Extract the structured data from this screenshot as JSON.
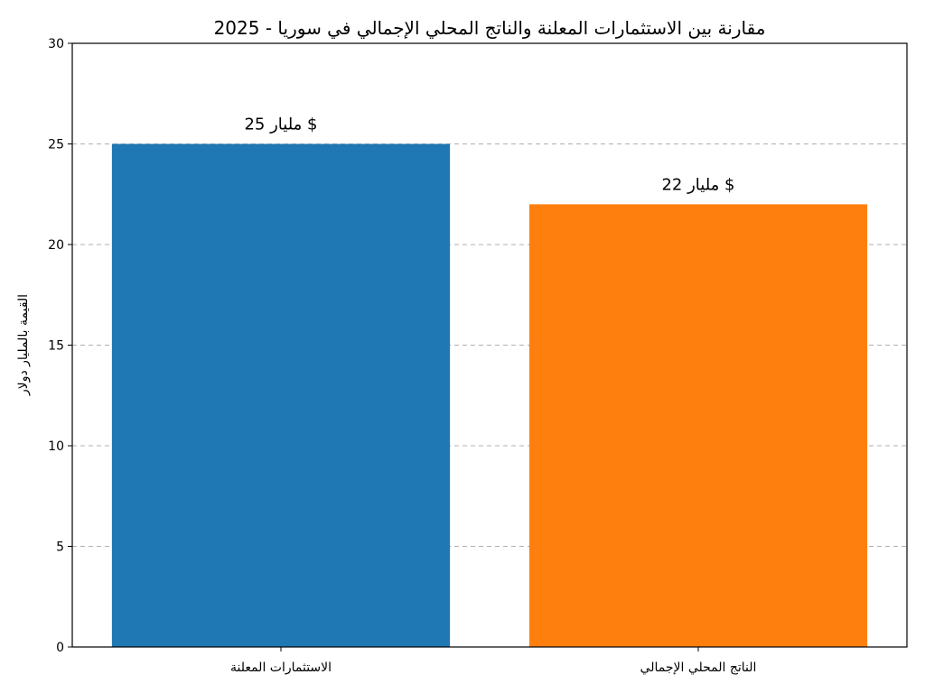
{
  "chart_data": {
    "type": "bar",
    "title": "مقارنة بين الاستثمارات المعلنة والناتج المحلي الإجمالي في سوريا - 2025",
    "xlabel": "",
    "ylabel": "القيمة بالمليار دولار",
    "categories": [
      "الاستثمارات المعلنة",
      "الناتج المحلي الإجمالي"
    ],
    "values": [
      25,
      22
    ],
    "data_labels": [
      "25 مليار $",
      "22 مليار $"
    ],
    "colors": [
      "#1f77b4",
      "#ff7f0e"
    ],
    "ylim": [
      0,
      30
    ],
    "yticks": [
      0,
      5,
      10,
      15,
      20,
      25,
      30
    ],
    "ytick_labels": [
      "0",
      "5",
      "10",
      "15",
      "20",
      "25",
      "30"
    ],
    "grid": "horizontal-dashed",
    "grid_color": "#b0b0b0",
    "legend": "none"
  }
}
